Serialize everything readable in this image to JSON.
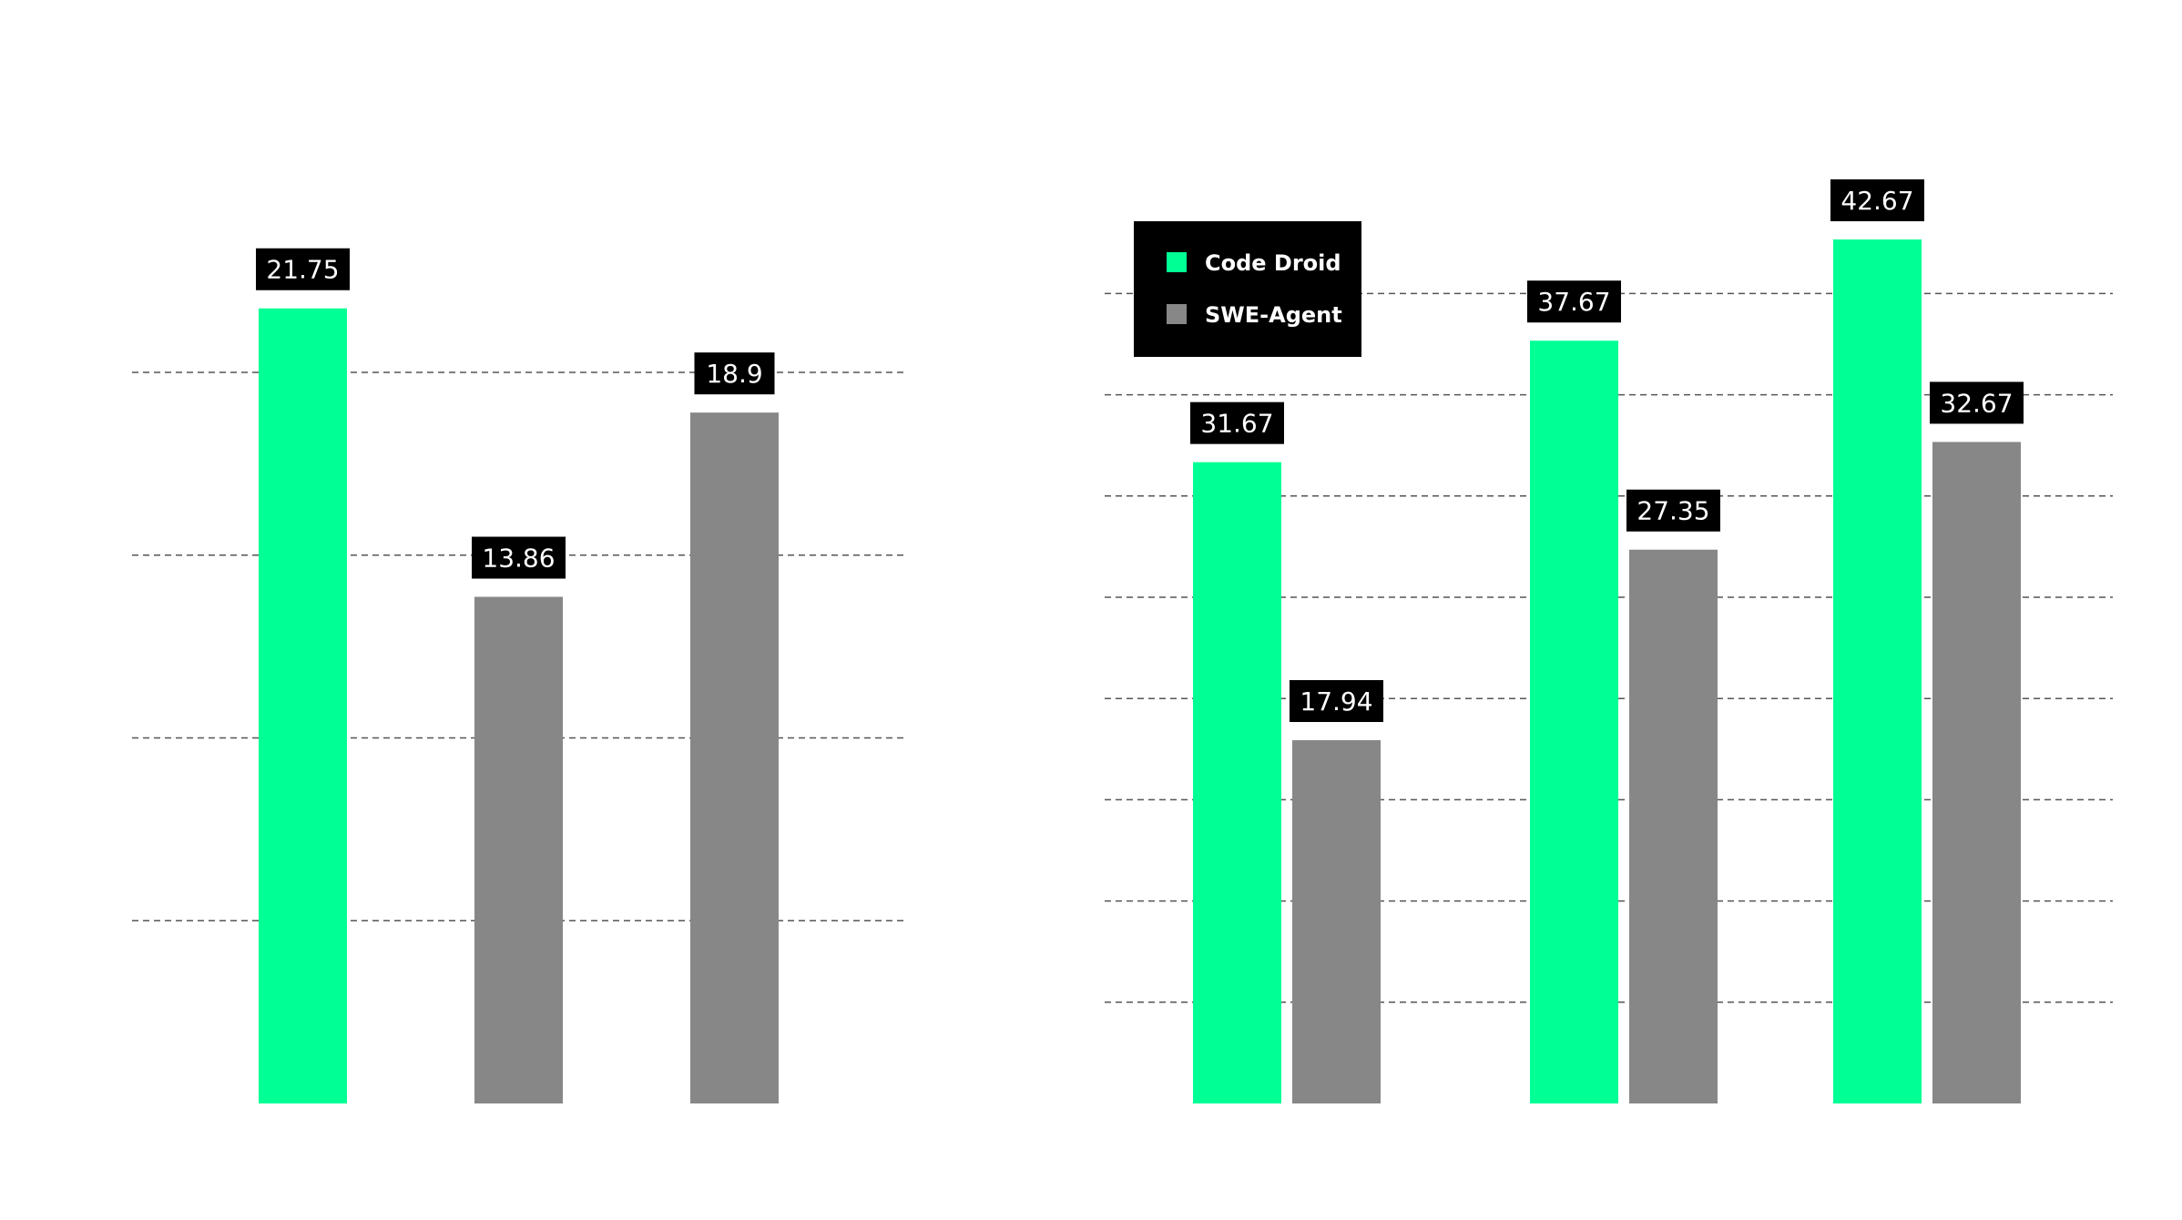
{
  "colors": {
    "code_droid": "#00FF95",
    "swe_agent": "#878787",
    "label_bg": "#000000",
    "label_text": "#FFFFFF",
    "grid": "#555555"
  },
  "legend": {
    "position": "top-left of right chart",
    "items": [
      {
        "name": "Code Droid",
        "color": "#00FF95"
      },
      {
        "name": "SWE-Agent",
        "color": "#878787"
      }
    ]
  },
  "chart_data": [
    {
      "type": "bar",
      "title": "",
      "xlabel": "",
      "ylabel": "",
      "grid": true,
      "ylim": [
        0,
        25
      ],
      "gridlines": [
        5,
        10,
        15,
        20
      ],
      "bars": [
        {
          "series": "Code Droid",
          "value": 21.75,
          "label": "21.75"
        },
        {
          "series": "SWE-Agent",
          "value": 13.86,
          "label": "13.86"
        },
        {
          "series": "SWE-Agent",
          "value": 18.9,
          "label": "18.9"
        }
      ]
    },
    {
      "type": "bar",
      "title": "",
      "xlabel": "",
      "ylabel": "",
      "grid": true,
      "ylim": [
        0,
        45
      ],
      "gridlines": [
        5,
        10,
        15,
        20,
        25,
        30,
        35,
        40
      ],
      "legend": "top-left",
      "groups": [
        {
          "bars": [
            {
              "series": "Code Droid",
              "value": 31.67,
              "label": "31.67"
            },
            {
              "series": "SWE-Agent",
              "value": 17.94,
              "label": "17.94"
            }
          ]
        },
        {
          "bars": [
            {
              "series": "Code Droid",
              "value": 37.67,
              "label": "37.67"
            },
            {
              "series": "SWE-Agent",
              "value": 27.35,
              "label": "27.35"
            }
          ]
        },
        {
          "bars": [
            {
              "series": "Code Droid",
              "value": 42.67,
              "label": "42.67"
            },
            {
              "series": "SWE-Agent",
              "value": 32.67,
              "label": "32.67"
            }
          ]
        }
      ]
    }
  ]
}
